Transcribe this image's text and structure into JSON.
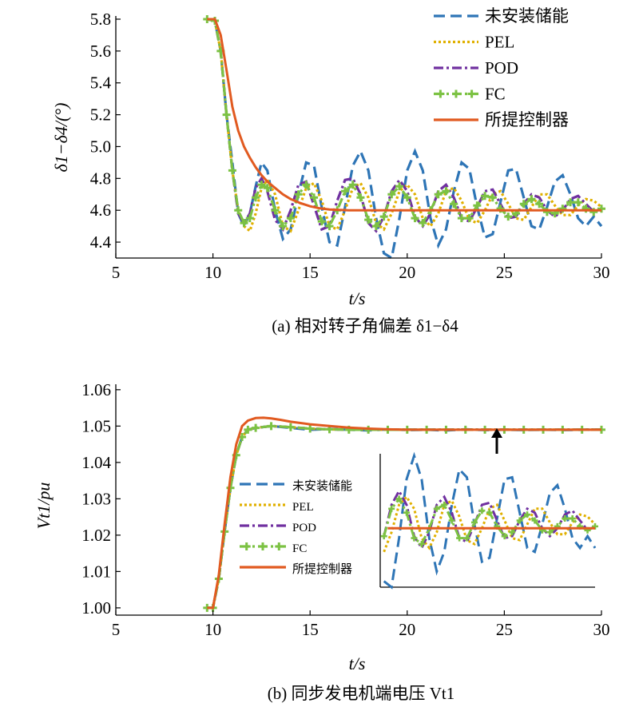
{
  "chart_data": [
    {
      "type": "line",
      "caption": "(a) 相对转子角偏差 δ1−δ4",
      "xlabel": "t/s",
      "ylabel": "δ1−δ4/(°)",
      "xlim": [
        5,
        30
      ],
      "ylim": [
        4.3,
        5.82
      ],
      "xticks": [
        "5",
        "10",
        "15",
        "20",
        "25",
        "30"
      ],
      "yticks": [
        "4.4",
        "4.6",
        "4.8",
        "5.0",
        "5.2",
        "5.4",
        "5.6",
        "5.8"
      ],
      "legend_position": "top-right",
      "series": [
        {
          "name": "未安装储能",
          "color": "#2e75b6",
          "dash": "dashed",
          "x": [
            9.7,
            10.1,
            10.4,
            10.7,
            11.0,
            11.3,
            11.6,
            11.9,
            12.2,
            12.5,
            12.8,
            13.2,
            13.6,
            14.0,
            14.4,
            14.8,
            15.2,
            15.6,
            16.0,
            16.4,
            16.8,
            17.2,
            17.6,
            18.0,
            18.4,
            18.8,
            19.2,
            19.6,
            20.0,
            20.4,
            20.8,
            21.2,
            21.6,
            22.0,
            22.4,
            22.8,
            23.2,
            23.6,
            24.0,
            24.4,
            24.8,
            25.2,
            25.6,
            26.0,
            26.4,
            26.8,
            27.2,
            27.6,
            28.0,
            28.4,
            28.8,
            29.2,
            29.6,
            30.0
          ],
          "y": [
            5.8,
            5.79,
            5.6,
            5.2,
            4.9,
            4.58,
            4.5,
            4.58,
            4.75,
            4.9,
            4.85,
            4.6,
            4.42,
            4.48,
            4.7,
            4.9,
            4.88,
            4.62,
            4.4,
            4.38,
            4.62,
            4.88,
            4.97,
            4.85,
            4.55,
            4.33,
            4.3,
            4.55,
            4.85,
            4.97,
            4.85,
            4.55,
            4.38,
            4.48,
            4.72,
            4.9,
            4.86,
            4.62,
            4.43,
            4.45,
            4.65,
            4.85,
            4.86,
            4.68,
            4.5,
            4.48,
            4.62,
            4.78,
            4.82,
            4.7,
            4.55,
            4.5,
            4.56,
            4.5
          ]
        },
        {
          "name": "PEL",
          "color": "#e0b000",
          "dash": "dotted",
          "x": [
            9.7,
            10.1,
            10.4,
            10.7,
            11.0,
            11.3,
            11.6,
            11.9,
            12.2,
            12.5,
            12.8,
            13.2,
            13.6,
            14.0,
            14.4,
            14.8,
            15.2,
            15.6,
            16.0,
            16.4,
            16.8,
            17.2,
            17.6,
            18.0,
            18.4,
            18.8,
            19.2,
            19.6,
            20.0,
            20.4,
            20.8,
            21.2,
            21.6,
            22.0,
            22.4,
            22.8,
            23.2,
            23.6,
            24.0,
            24.4,
            24.8,
            25.2,
            25.6,
            26.0,
            26.4,
            26.8,
            27.2,
            27.6,
            28.0,
            28.4,
            28.8,
            29.2,
            29.6,
            30.0
          ],
          "y": [
            5.8,
            5.79,
            5.6,
            5.2,
            4.85,
            4.6,
            4.5,
            4.47,
            4.58,
            4.74,
            4.79,
            4.7,
            4.5,
            4.47,
            4.6,
            4.74,
            4.77,
            4.66,
            4.5,
            4.48,
            4.6,
            4.74,
            4.77,
            4.68,
            4.52,
            4.48,
            4.58,
            4.72,
            4.76,
            4.7,
            4.55,
            4.5,
            4.58,
            4.72,
            4.74,
            4.66,
            4.54,
            4.52,
            4.6,
            4.7,
            4.72,
            4.64,
            4.55,
            4.54,
            4.62,
            4.7,
            4.7,
            4.63,
            4.57,
            4.57,
            4.63,
            4.67,
            4.66,
            4.62
          ]
        },
        {
          "name": "POD",
          "color": "#7030a0",
          "dash": "dashdot",
          "x": [
            9.7,
            10.1,
            10.4,
            10.7,
            11.0,
            11.3,
            11.6,
            11.9,
            12.2,
            12.5,
            12.8,
            13.2,
            13.6,
            14.0,
            14.4,
            14.8,
            15.2,
            15.6,
            16.0,
            16.4,
            16.8,
            17.2,
            17.6,
            18.0,
            18.4,
            18.8,
            19.2,
            19.6,
            20.0,
            20.4,
            20.8,
            21.2,
            21.6,
            22.0,
            22.4,
            22.8,
            23.2,
            23.6,
            24.0,
            24.4,
            24.8,
            25.2,
            25.6,
            26.0,
            26.4,
            26.8,
            27.2,
            27.6,
            28.0,
            28.4,
            28.8,
            29.2,
            29.6,
            30.0
          ],
          "y": [
            5.8,
            5.79,
            5.6,
            5.2,
            4.85,
            4.58,
            4.52,
            4.58,
            4.74,
            4.8,
            4.72,
            4.54,
            4.48,
            4.6,
            4.76,
            4.78,
            4.63,
            4.48,
            4.5,
            4.66,
            4.79,
            4.8,
            4.7,
            4.52,
            4.47,
            4.56,
            4.72,
            4.79,
            4.72,
            4.56,
            4.5,
            4.58,
            4.72,
            4.76,
            4.68,
            4.55,
            4.53,
            4.62,
            4.72,
            4.73,
            4.64,
            4.55,
            4.56,
            4.64,
            4.7,
            4.68,
            4.6,
            4.56,
            4.6,
            4.67,
            4.69,
            4.64,
            4.59,
            4.61
          ]
        },
        {
          "name": "FC",
          "color": "#7cc243",
          "dash": "dashdot",
          "marker": "plus",
          "x": [
            9.7,
            10.1,
            10.4,
            10.7,
            11.0,
            11.3,
            11.6,
            11.9,
            12.2,
            12.5,
            12.8,
            13.2,
            13.6,
            14.0,
            14.4,
            14.8,
            15.2,
            15.6,
            16.0,
            16.4,
            16.8,
            17.2,
            17.6,
            18.0,
            18.4,
            18.8,
            19.2,
            19.6,
            20.0,
            20.4,
            20.8,
            21.2,
            21.6,
            22.0,
            22.4,
            22.8,
            23.2,
            23.6,
            24.0,
            24.4,
            24.8,
            25.2,
            25.6,
            26.0,
            26.4,
            26.8,
            27.2,
            27.6,
            28.0,
            28.4,
            28.8,
            29.2,
            29.6,
            30.0
          ],
          "y": [
            5.8,
            5.79,
            5.6,
            5.2,
            4.85,
            4.6,
            4.52,
            4.55,
            4.68,
            4.76,
            4.74,
            4.6,
            4.5,
            4.55,
            4.7,
            4.76,
            4.68,
            4.53,
            4.5,
            4.6,
            4.72,
            4.76,
            4.68,
            4.54,
            4.5,
            4.56,
            4.7,
            4.75,
            4.68,
            4.55,
            4.52,
            4.6,
            4.7,
            4.72,
            4.64,
            4.55,
            4.55,
            4.63,
            4.69,
            4.68,
            4.61,
            4.56,
            4.58,
            4.64,
            4.67,
            4.64,
            4.59,
            4.58,
            4.61,
            4.65,
            4.65,
            4.61,
            4.59,
            4.61
          ]
        },
        {
          "name": "所提控制器",
          "color": "#e15a20",
          "dash": "solid",
          "x": [
            9.7,
            10.1,
            10.4,
            10.7,
            11.0,
            11.3,
            11.6,
            11.9,
            12.2,
            12.5,
            12.8,
            13.2,
            13.6,
            14.0,
            14.5,
            15.0,
            15.5,
            16.0,
            17.0,
            18.0,
            19.0,
            20.0,
            22.0,
            24.0,
            26.0,
            28.0,
            30.0
          ],
          "y": [
            5.8,
            5.8,
            5.7,
            5.48,
            5.25,
            5.1,
            5.0,
            4.93,
            4.87,
            4.82,
            4.78,
            4.74,
            4.7,
            4.67,
            4.645,
            4.625,
            4.612,
            4.605,
            4.6,
            4.6,
            4.6,
            4.6,
            4.6,
            4.6,
            4.6,
            4.6,
            4.6
          ]
        }
      ]
    },
    {
      "type": "line",
      "caption": "(b) 同步发电机端电压 Vt1",
      "xlabel": "t/s",
      "ylabel": "Vt1/pu",
      "xlim": [
        5,
        30
      ],
      "ylim": [
        0.998,
        1.0615
      ],
      "xticks": [
        "5",
        "10",
        "15",
        "20",
        "25",
        "30"
      ],
      "yticks": [
        "1.00",
        "1.01",
        "1.02",
        "1.03",
        "1.04",
        "1.05",
        "1.06"
      ],
      "legend_position": "center-left",
      "annotation": "arrow marking t ≈ 24.8 s, the region shown enlarged in the inset",
      "series": [
        {
          "name": "未安装储能",
          "color": "#2e75b6",
          "dash": "dashed",
          "x": [
            9.7,
            10.0,
            10.3,
            10.6,
            10.9,
            11.2,
            11.5,
            11.8,
            12.2,
            13.0,
            14.0,
            15.0,
            16.0,
            17.0,
            18.0,
            19.0,
            20.0,
            21.0,
            22.0,
            23.0,
            24.0,
            25.0,
            26.0,
            27.0,
            28.0,
            29.0,
            30.0
          ],
          "y": [
            1.0,
            1.0,
            1.008,
            1.021,
            1.033,
            1.042,
            1.047,
            1.049,
            1.0495,
            1.05,
            1.0495,
            1.049,
            1.0492,
            1.049,
            1.0488,
            1.0491,
            1.0489,
            1.049,
            1.0488,
            1.0491,
            1.0489,
            1.049,
            1.0489,
            1.049,
            1.0489,
            1.049,
            1.049
          ]
        },
        {
          "name": "PEL",
          "color": "#e0b000",
          "dash": "dotted",
          "x": [
            9.7,
            10.0,
            10.3,
            10.6,
            10.9,
            11.2,
            11.5,
            11.8,
            12.2,
            13.0,
            14.0,
            15.0,
            16.0,
            17.0,
            18.0,
            20.0,
            22.0,
            24.0,
            26.0,
            28.0,
            30.0
          ],
          "y": [
            1.0,
            1.0,
            1.008,
            1.021,
            1.033,
            1.042,
            1.047,
            1.049,
            1.0495,
            1.05,
            1.0497,
            1.0493,
            1.0491,
            1.049,
            1.049,
            1.049,
            1.049,
            1.049,
            1.049,
            1.049,
            1.049
          ]
        },
        {
          "name": "POD",
          "color": "#7030a0",
          "dash": "dashdot",
          "x": [
            9.7,
            10.0,
            10.3,
            10.6,
            10.9,
            11.2,
            11.5,
            11.8,
            12.2,
            13.0,
            14.0,
            15.0,
            16.0,
            17.0,
            18.0,
            20.0,
            22.0,
            24.0,
            26.0,
            28.0,
            30.0
          ],
          "y": [
            1.0,
            1.0,
            1.008,
            1.021,
            1.033,
            1.042,
            1.047,
            1.049,
            1.0495,
            1.05,
            1.0497,
            1.0493,
            1.0491,
            1.049,
            1.049,
            1.049,
            1.049,
            1.049,
            1.049,
            1.049,
            1.049
          ]
        },
        {
          "name": "FC",
          "color": "#7cc243",
          "dash": "dashdot",
          "marker": "plus",
          "x": [
            9.7,
            10.0,
            10.3,
            10.6,
            10.9,
            11.2,
            11.5,
            11.8,
            12.2,
            13.0,
            14.0,
            15.0,
            16.0,
            17.0,
            18.0,
            19.0,
            20.0,
            21.0,
            22.0,
            23.0,
            24.0,
            25.0,
            26.0,
            27.0,
            28.0,
            29.0,
            30.0
          ],
          "y": [
            1.0,
            1.0,
            1.008,
            1.021,
            1.033,
            1.042,
            1.047,
            1.049,
            1.0495,
            1.05,
            1.0497,
            1.0493,
            1.0491,
            1.049,
            1.049,
            1.049,
            1.049,
            1.049,
            1.049,
            1.049,
            1.049,
            1.049,
            1.049,
            1.049,
            1.049,
            1.049,
            1.049
          ]
        },
        {
          "name": "所提控制器",
          "color": "#e15a20",
          "dash": "solid",
          "x": [
            9.7,
            10.0,
            10.3,
            10.6,
            10.9,
            11.2,
            11.5,
            11.8,
            12.2,
            12.6,
            13.0,
            13.5,
            14.0,
            15.0,
            16.0,
            17.0,
            18.0,
            19.0,
            20.0,
            22.0,
            24.0,
            26.0,
            28.0,
            30.0
          ],
          "y": [
            1.0,
            1.0,
            1.009,
            1.023,
            1.036,
            1.045,
            1.05,
            1.0515,
            1.0522,
            1.0523,
            1.0521,
            1.0517,
            1.0512,
            1.0505,
            1.05,
            1.0496,
            1.0493,
            1.0491,
            1.049,
            1.049,
            1.049,
            1.049,
            1.049,
            1.049
          ]
        }
      ],
      "inset": {
        "legend": [
          "未安装储能",
          "PEL",
          "POD",
          "FC",
          "所提控制器"
        ]
      }
    }
  ]
}
